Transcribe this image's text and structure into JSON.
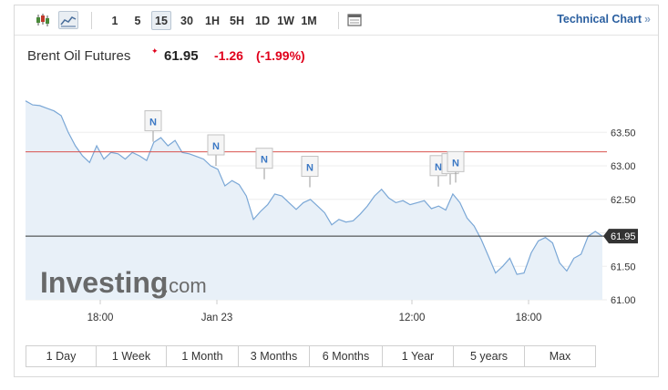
{
  "toolbar": {
    "intervals": [
      {
        "label": "1",
        "active": false
      },
      {
        "label": "5",
        "active": false
      },
      {
        "label": "15",
        "active": true
      },
      {
        "label": "30",
        "active": false
      },
      {
        "label": "1H",
        "active": false
      },
      {
        "label": "5H",
        "active": false
      },
      {
        "label": "1D",
        "active": false
      },
      {
        "label": "1W",
        "active": false
      },
      {
        "label": "1M",
        "active": false
      }
    ],
    "icons": [
      "candlestick-icon",
      "area-chart-icon",
      "table-icon"
    ],
    "technical_link": "Technical Chart",
    "technical_arrow": "»"
  },
  "header": {
    "title": "Brent Oil Futures",
    "price": "61.95",
    "change": "-1.26",
    "change_pct": "(-1.99%)",
    "delayed_marker": "✦"
  },
  "watermark": {
    "brand": "Investing",
    "suffix": ".com"
  },
  "periods": [
    "1 Day",
    "1 Week",
    "1 Month",
    "3 Months",
    "6 Months",
    "1 Year",
    "5 years",
    "Max"
  ],
  "colors": {
    "line": "#7aa7d6",
    "area": "#e8f0f8",
    "previous_close_line": "#d9534f",
    "last_price_line": "#333333",
    "negative": "#e0001b",
    "link": "#2a5fa0",
    "news_marker": "#3b78c4"
  },
  "chart_data": {
    "type": "area",
    "title": "Brent Oil Futures",
    "x_ticks": [
      "18:00",
      "Jan 23",
      "12:00",
      "18:00"
    ],
    "y_ticks": [
      "63.50",
      "63.00",
      "62.50",
      "62.00",
      "61.50",
      "61.00"
    ],
    "ylim": [
      61.0,
      64.0
    ],
    "previous_close": 63.21,
    "last_price": "61.95",
    "news_marker_label": "N",
    "news_marker_values": [
      63.36,
      63.0,
      62.8,
      62.68,
      62.69,
      62.72,
      62.75
    ],
    "series": [
      {
        "values": [
          63.97,
          63.91,
          63.9,
          63.86,
          63.82,
          63.75,
          63.5,
          63.3,
          63.15,
          63.05,
          63.3,
          63.1,
          63.2,
          63.18,
          63.1,
          63.2,
          63.15,
          63.08,
          63.35,
          63.42,
          63.3,
          63.38,
          63.2,
          63.18,
          63.14,
          63.1,
          63.0,
          62.95,
          62.7,
          62.78,
          62.72,
          62.55,
          62.2,
          62.32,
          62.42,
          62.58,
          62.55,
          62.45,
          62.35,
          62.45,
          62.5,
          62.4,
          62.3,
          62.12,
          62.2,
          62.16,
          62.18,
          62.28,
          62.4,
          62.55,
          62.65,
          62.52,
          62.45,
          62.48,
          62.42,
          62.45,
          62.48,
          62.36,
          62.4,
          62.34,
          62.58,
          62.45,
          62.22,
          62.1,
          61.9,
          61.65,
          61.4,
          61.5,
          61.62,
          61.38,
          61.4,
          61.7,
          61.88,
          61.93,
          61.85,
          61.55,
          61.43,
          61.62,
          61.68,
          61.95,
          62.02,
          61.95
        ]
      }
    ]
  }
}
